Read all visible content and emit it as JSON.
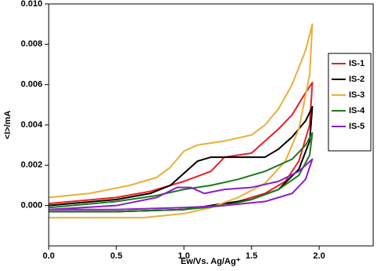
{
  "chart_data": {
    "type": "line",
    "x_label": "Ew/Vs. Ag/Ag⁺",
    "y_label": "<I>/mA",
    "xlim": [
      0,
      2.4
    ],
    "ylim": [
      -0.002,
      0.01
    ],
    "xticks": [
      {
        "value": 0,
        "label": "0.0"
      },
      {
        "value": 0.5,
        "label": "0.5"
      },
      {
        "value": 1,
        "label": "1.0"
      },
      {
        "value": 1.5,
        "label": "1.5"
      },
      {
        "value": 2,
        "label": "2.0"
      }
    ],
    "yticks": [
      {
        "value": 0,
        "label": "0.000"
      },
      {
        "value": 0.002,
        "label": "0.002"
      },
      {
        "value": 0.004,
        "label": "0.004"
      },
      {
        "value": 0.006,
        "label": "0.006"
      },
      {
        "value": 0.008,
        "label": "0.008"
      },
      {
        "value": 0.01,
        "label": "0.010"
      }
    ],
    "series": [
      {
        "name": "IS-1",
        "color": "#ee1c25",
        "x": [
          0,
          0.5,
          0.75,
          1.0,
          1.2,
          1.3,
          1.4,
          1.5,
          1.6,
          1.7,
          1.8,
          1.9,
          1.95,
          1.93,
          1.85,
          1.75,
          1.6,
          1.4,
          1.2,
          1.0,
          0.5,
          0
        ],
        "values": [
          0.0001,
          0.0004,
          0.0007,
          0.0012,
          0.0017,
          0.0024,
          0.0025,
          0.0026,
          0.0032,
          0.0038,
          0.0045,
          0.0056,
          0.0061,
          0.004,
          0.0022,
          0.0012,
          0.0006,
          0.0002,
          0.0,
          -0.0002,
          -0.0003,
          -0.0003
        ]
      },
      {
        "name": "IS-2",
        "color": "#000000",
        "x": [
          0,
          0.5,
          0.75,
          0.9,
          1.0,
          1.1,
          1.2,
          1.4,
          1.6,
          1.7,
          1.8,
          1.9,
          1.95,
          1.93,
          1.85,
          1.7,
          1.5,
          1.2,
          1.0,
          0.5,
          0
        ],
        "values": [
          0.0,
          0.0003,
          0.0006,
          0.001,
          0.0016,
          0.0022,
          0.0024,
          0.0024,
          0.0024,
          0.0028,
          0.0034,
          0.0042,
          0.0049,
          0.0032,
          0.0018,
          0.0008,
          0.0003,
          0.0,
          -0.0002,
          -0.0003,
          -0.0003
        ]
      },
      {
        "name": "IS-3",
        "color": "#e8b039",
        "x": [
          0,
          0.3,
          0.6,
          0.8,
          0.9,
          1.0,
          1.1,
          1.3,
          1.5,
          1.6,
          1.7,
          1.8,
          1.9,
          1.95,
          1.93,
          1.85,
          1.75,
          1.6,
          1.4,
          1.2,
          1.0,
          0.7,
          0.3,
          0
        ],
        "values": [
          0.0004,
          0.0006,
          0.001,
          0.0014,
          0.0019,
          0.0027,
          0.003,
          0.0032,
          0.0035,
          0.004,
          0.0048,
          0.006,
          0.0077,
          0.009,
          0.0065,
          0.0038,
          0.0022,
          0.0011,
          0.0004,
          -0.0001,
          -0.0004,
          -0.0006,
          -0.0006,
          -0.0006
        ]
      },
      {
        "name": "IS-4",
        "color": "#1a7a1a",
        "x": [
          0,
          0.5,
          0.8,
          1.0,
          1.2,
          1.4,
          1.6,
          1.8,
          1.9,
          1.95,
          1.93,
          1.85,
          1.7,
          1.5,
          1.3,
          1.0,
          0.5,
          0
        ],
        "values": [
          -0.0001,
          0.0002,
          0.0005,
          0.0008,
          0.001,
          0.0013,
          0.0017,
          0.0023,
          0.003,
          0.0036,
          0.0025,
          0.0015,
          0.0008,
          0.0003,
          0.0,
          -0.0002,
          -0.0003,
          -0.0003
        ]
      },
      {
        "name": "IS-5",
        "color": "#8b1fc9",
        "x": [
          0,
          0.5,
          0.8,
          0.95,
          1.05,
          1.15,
          1.3,
          1.5,
          1.7,
          1.85,
          1.95,
          1.9,
          1.8,
          1.6,
          1.3,
          1.0,
          0.5,
          0
        ],
        "values": [
          -0.0002,
          0.0,
          0.0004,
          0.0009,
          0.0009,
          0.0006,
          0.0008,
          0.0009,
          0.0012,
          0.0017,
          0.0023,
          0.0013,
          0.0006,
          0.0002,
          0.0,
          -0.0001,
          -0.0002,
          -0.0002
        ]
      }
    ]
  }
}
